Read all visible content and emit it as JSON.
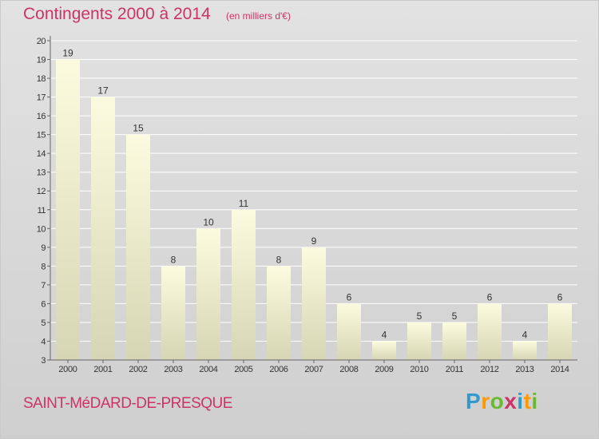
{
  "header": {
    "title": "Contingents 2000 à 2014",
    "subtitle": "(en milliers d'€)"
  },
  "footer": {
    "commune": "SAINT-MéDARD-DE-PRESQUE",
    "brand_letters": [
      {
        "ch": "P",
        "color": "#3399cc"
      },
      {
        "ch": "r",
        "color": "#ff9900"
      },
      {
        "ch": "o",
        "color": "#66bb33"
      },
      {
        "ch": "x",
        "color": "#cc3366"
      },
      {
        "ch": "i",
        "color": "#3399cc"
      },
      {
        "ch": "t",
        "color": "#ff9900"
      },
      {
        "ch": "i",
        "color": "#66bb33"
      }
    ]
  },
  "chart_data": {
    "type": "bar",
    "title": "Contingents 2000 à 2014",
    "subtitle": "(en milliers d'€)",
    "categories": [
      "2000",
      "2001",
      "2002",
      "2003",
      "2004",
      "2005",
      "2006",
      "2007",
      "2008",
      "2009",
      "2010",
      "2011",
      "2012",
      "2013",
      "2014"
    ],
    "values": [
      19,
      17,
      15,
      8,
      10,
      11,
      8,
      9,
      6,
      4,
      5,
      5,
      6,
      4,
      6
    ],
    "ylim": [
      3,
      20
    ],
    "yticks": [
      3,
      4,
      5,
      6,
      7,
      8,
      9,
      10,
      11,
      12,
      13,
      14,
      15,
      16,
      17,
      18,
      19,
      20
    ],
    "grid": true,
    "data_labels": true,
    "colors": {
      "bar_top": "#fbfbdf",
      "bar_bottom": "#d6d6b4",
      "grid": "#ffffff",
      "axis": "#666666",
      "text": "#333333",
      "accent": "#cc3366"
    }
  }
}
